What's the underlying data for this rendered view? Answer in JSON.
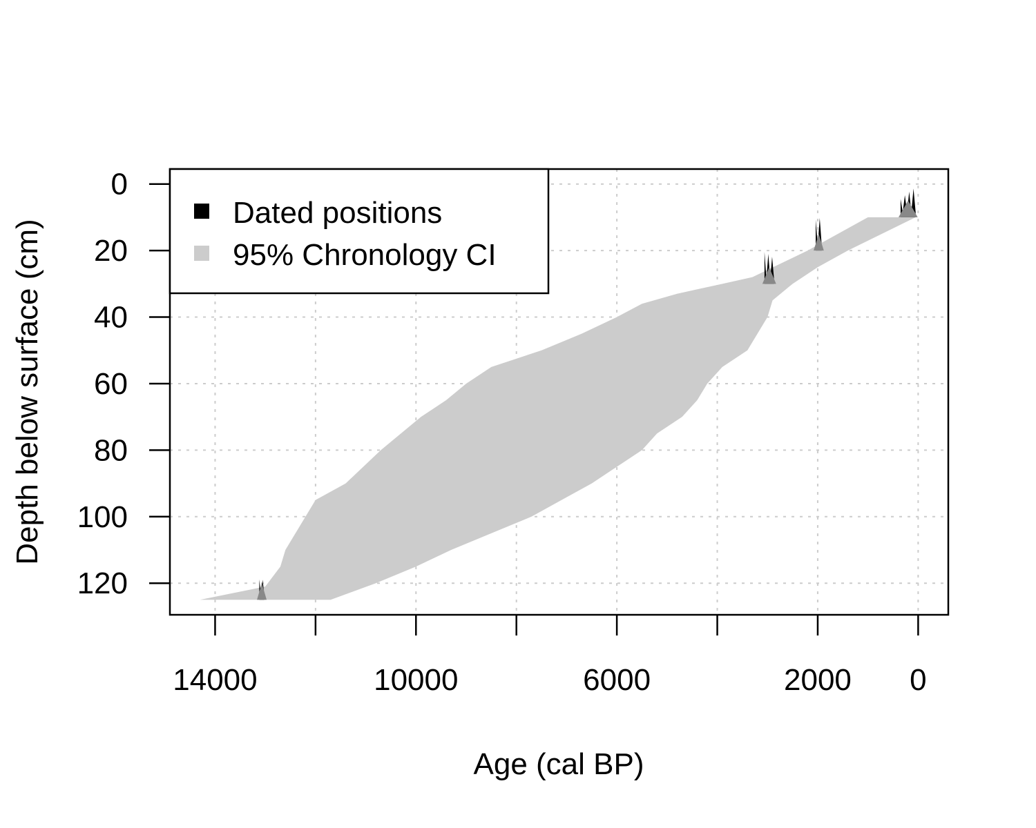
{
  "chart_data": {
    "type": "area",
    "xlabel": "Age (cal BP)",
    "ylabel": "Depth below surface (cm)",
    "xlim": [
      14900,
      -600
    ],
    "ylim": [
      129.5,
      -4.5
    ],
    "x_ticks": [
      14000,
      12000,
      10000,
      8000,
      6000,
      4000,
      2000,
      0
    ],
    "x_tick_labels": [
      "14000",
      "",
      "10000",
      "",
      "6000",
      "",
      "2000",
      "0"
    ],
    "x_grid": [
      14000,
      12000,
      10000,
      8000,
      6000,
      4000,
      2000,
      0
    ],
    "y_ticks": [
      0,
      20,
      40,
      60,
      80,
      100,
      120
    ],
    "y_tick_labels": [
      "0",
      "20",
      "40",
      "60",
      "80",
      "100",
      "120"
    ],
    "grid": true,
    "legend": {
      "position": "top-left",
      "entries": [
        {
          "label": "Dated positions",
          "color": "#000000"
        },
        {
          "label": "95% Chronology CI",
          "color": "#cccccc"
        }
      ]
    },
    "series": [
      {
        "name": "95% Chronology CI",
        "kind": "band",
        "color": "#cccccc",
        "old_bound": [
          {
            "depth": 10,
            "age": 1000
          },
          {
            "depth": 20,
            "age": 2200
          },
          {
            "depth": 28,
            "age": 3300
          },
          {
            "depth": 30,
            "age": 3900
          },
          {
            "depth": 33,
            "age": 4800
          },
          {
            "depth": 36,
            "age": 5500
          },
          {
            "depth": 40,
            "age": 6000
          },
          {
            "depth": 45,
            "age": 6700
          },
          {
            "depth": 50,
            "age": 7500
          },
          {
            "depth": 55,
            "age": 8500
          },
          {
            "depth": 60,
            "age": 9000
          },
          {
            "depth": 65,
            "age": 9400
          },
          {
            "depth": 70,
            "age": 9900
          },
          {
            "depth": 80,
            "age": 10700
          },
          {
            "depth": 90,
            "age": 11400
          },
          {
            "depth": 95,
            "age": 12000
          },
          {
            "depth": 100,
            "age": 12200
          },
          {
            "depth": 105,
            "age": 12400
          },
          {
            "depth": 110,
            "age": 12600
          },
          {
            "depth": 115,
            "age": 12700
          },
          {
            "depth": 121,
            "age": 13000
          },
          {
            "depth": 125,
            "age": 14300
          }
        ],
        "young_bound": [
          {
            "depth": 10,
            "age": 50
          },
          {
            "depth": 20,
            "age": 1400
          },
          {
            "depth": 25,
            "age": 2000
          },
          {
            "depth": 30,
            "age": 2500
          },
          {
            "depth": 35,
            "age": 2900
          },
          {
            "depth": 40,
            "age": 3000
          },
          {
            "depth": 45,
            "age": 3200
          },
          {
            "depth": 50,
            "age": 3400
          },
          {
            "depth": 55,
            "age": 3900
          },
          {
            "depth": 60,
            "age": 4200
          },
          {
            "depth": 65,
            "age": 4400
          },
          {
            "depth": 70,
            "age": 4700
          },
          {
            "depth": 75,
            "age": 5200
          },
          {
            "depth": 80,
            "age": 5500
          },
          {
            "depth": 85,
            "age": 6000
          },
          {
            "depth": 90,
            "age": 6500
          },
          {
            "depth": 95,
            "age": 7100
          },
          {
            "depth": 100,
            "age": 7700
          },
          {
            "depth": 105,
            "age": 8500
          },
          {
            "depth": 110,
            "age": 9300
          },
          {
            "depth": 115,
            "age": 10000
          },
          {
            "depth": 120,
            "age": 10800
          },
          {
            "depth": 125,
            "age": 11700
          }
        ]
      },
      {
        "name": "Dated positions",
        "kind": "date-densities",
        "color": "#000000",
        "dates": [
          {
            "depth_top": 0,
            "depth_bottom": 10,
            "age_min": 50,
            "age_max": 350
          },
          {
            "depth_top": 10,
            "depth_bottom": 20,
            "age_min": 1920,
            "age_max": 2040
          },
          {
            "depth_top": 20,
            "depth_bottom": 30,
            "age_min": 2870,
            "age_max": 3060
          },
          {
            "depth_top": 115,
            "depth_bottom": 125,
            "age_min": 13020,
            "age_max": 13120
          }
        ]
      }
    ]
  }
}
